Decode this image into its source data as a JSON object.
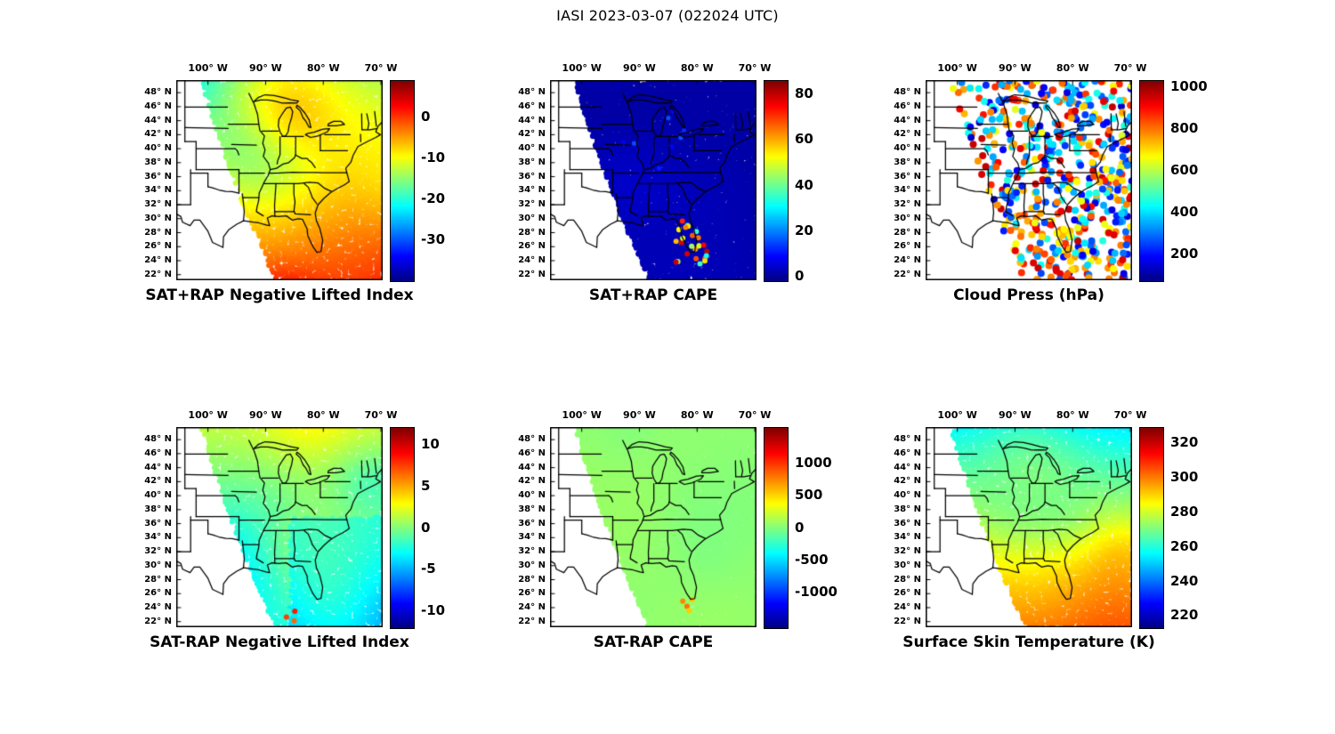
{
  "page_title": "IASI 2023-03-07 (022024 UTC)",
  "axes": {
    "lon_ticks": [
      {
        "label": "100° W",
        "value": 100
      },
      {
        "label": "90° W",
        "value": 90
      },
      {
        "label": "80° W",
        "value": 80
      },
      {
        "label": "70° W",
        "value": 70
      }
    ],
    "lat_ticks": [
      {
        "label": "48° N",
        "value": 48
      },
      {
        "label": "46° N",
        "value": 46
      },
      {
        "label": "44° N",
        "value": 44
      },
      {
        "label": "42° N",
        "value": 42
      },
      {
        "label": "40° N",
        "value": 40
      },
      {
        "label": "38° N",
        "value": 38
      },
      {
        "label": "36° N",
        "value": 36
      },
      {
        "label": "34° N",
        "value": 34
      },
      {
        "label": "32° N",
        "value": 32
      },
      {
        "label": "30° N",
        "value": 30
      },
      {
        "label": "28° N",
        "value": 28
      },
      {
        "label": "26° N",
        "value": 26
      },
      {
        "label": "24° N",
        "value": 24
      },
      {
        "label": "22° N",
        "value": 22
      }
    ]
  },
  "chart_data": [
    {
      "type": "heatmap",
      "title": "SAT+RAP Negative Lifted Index",
      "colormap": "jet",
      "lon_range_deg_west": [
        105.5,
        69.7
      ],
      "lat_range_deg_north": [
        21.2,
        49.8
      ],
      "colorbar": {
        "vmin": -40,
        "vmax": 9,
        "ticks": [
          {
            "label": "0",
            "value": 0
          },
          {
            "label": "-10",
            "value": -10
          },
          {
            "label": "-20",
            "value": -20
          },
          {
            "label": "-30",
            "value": -30
          }
        ]
      },
      "field_summary": "Satellite swath over the central/eastern US; lifted index mostly -5 to -20 (green/cyan) with values near -2 (orange) across the Southeast, Gulf coast and western Atlantic."
    },
    {
      "type": "heatmap",
      "title": "SAT+RAP CAPE",
      "colormap": "jet",
      "lon_range_deg_west": [
        105.5,
        69.7
      ],
      "lat_range_deg_north": [
        21.2,
        49.8
      ],
      "colorbar": {
        "vmin": -2,
        "vmax": 86,
        "ticks": [
          {
            "label": "80",
            "value": 80
          },
          {
            "label": "60",
            "value": 60
          },
          {
            "label": "40",
            "value": 40
          },
          {
            "label": "20",
            "value": 20
          },
          {
            "label": "0",
            "value": 0
          }
        ]
      },
      "field_summary": "CAPE near 0 (dark blue) over almost the entire swath; isolated spots of roughly 30-85 (green to red) near Florida and the Gulf coast."
    },
    {
      "type": "scatter-map",
      "title": "Cloud Press (hPa)",
      "colormap": "jet",
      "lon_range_deg_west": [
        105.5,
        69.7
      ],
      "lat_range_deg_north": [
        21.2,
        49.8
      ],
      "colorbar": {
        "vmin": 70,
        "vmax": 1030,
        "ticks": [
          {
            "label": "1000",
            "value": 1000
          },
          {
            "label": "800",
            "value": 800
          },
          {
            "label": "600",
            "value": 600
          },
          {
            "label": "400",
            "value": 400
          },
          {
            "label": "200",
            "value": 200
          }
        ]
      },
      "field_summary": "Cloud-top pressure retrievals: mixed low values 200-500 hPa (blue/cyan) mostly to the north, and high values 700-900 hPa (orange/red) over the south, Gulf and offshore Atlantic."
    },
    {
      "type": "heatmap",
      "title": "SAT-RAP Negative Lifted Index",
      "colormap": "jet",
      "lon_range_deg_west": [
        105.5,
        69.7
      ],
      "lat_range_deg_north": [
        21.2,
        49.8
      ],
      "colorbar": {
        "vmin": -12,
        "vmax": 12,
        "ticks": [
          {
            "label": "10",
            "value": 10
          },
          {
            "label": "5",
            "value": 5
          },
          {
            "label": "0",
            "value": 0
          },
          {
            "label": "-5",
            "value": -5
          },
          {
            "label": "-10",
            "value": -10
          }
        ]
      },
      "field_summary": "SAT minus RAP lifted-index difference mostly -1 to -3 (cyan), near +1 to +3 (green) to the north, with patches of -5 to -9 (blue) over the Southeast and western Atlantic; a few small positive (orange) spots at the far south edge."
    },
    {
      "type": "heatmap",
      "title": "SAT-RAP CAPE",
      "colormap": "jet",
      "lon_range_deg_west": [
        105.5,
        69.7
      ],
      "lat_range_deg_north": [
        21.2,
        49.8
      ],
      "colorbar": {
        "vmin": -1550,
        "vmax": 1550,
        "ticks": [
          {
            "label": "1000",
            "value": 1000
          },
          {
            "label": "500",
            "value": 500
          },
          {
            "label": "0",
            "value": 0
          },
          {
            "label": "-500",
            "value": -500
          },
          {
            "label": "-1000",
            "value": -1000
          }
        ]
      },
      "field_summary": "SAT minus RAP CAPE difference near 0 (uniform light green) across the whole swath, with a few isolated positive spots (~+500 to +900, orange/red) near South Florida."
    },
    {
      "type": "heatmap",
      "title": "Surface Skin Temperature (K)",
      "colormap": "jet",
      "lon_range_deg_west": [
        105.5,
        69.7
      ],
      "lat_range_deg_north": [
        21.2,
        49.8
      ],
      "colorbar": {
        "vmin": 213,
        "vmax": 329,
        "ticks": [
          {
            "label": "320",
            "value": 320
          },
          {
            "label": "300",
            "value": 300
          },
          {
            "label": "280",
            "value": 280
          },
          {
            "label": "260",
            "value": 260
          },
          {
            "label": "240",
            "value": 240
          },
          {
            "label": "220",
            "value": 220
          }
        ]
      },
      "field_summary": "Surface skin temperature ~255-265 K (cyan) in the north, ~280-290 K (green/yellow) at mid-latitudes, and ~295-305 K (orange) over the Gulf of Mexico, Florida and the western Atlantic."
    }
  ]
}
